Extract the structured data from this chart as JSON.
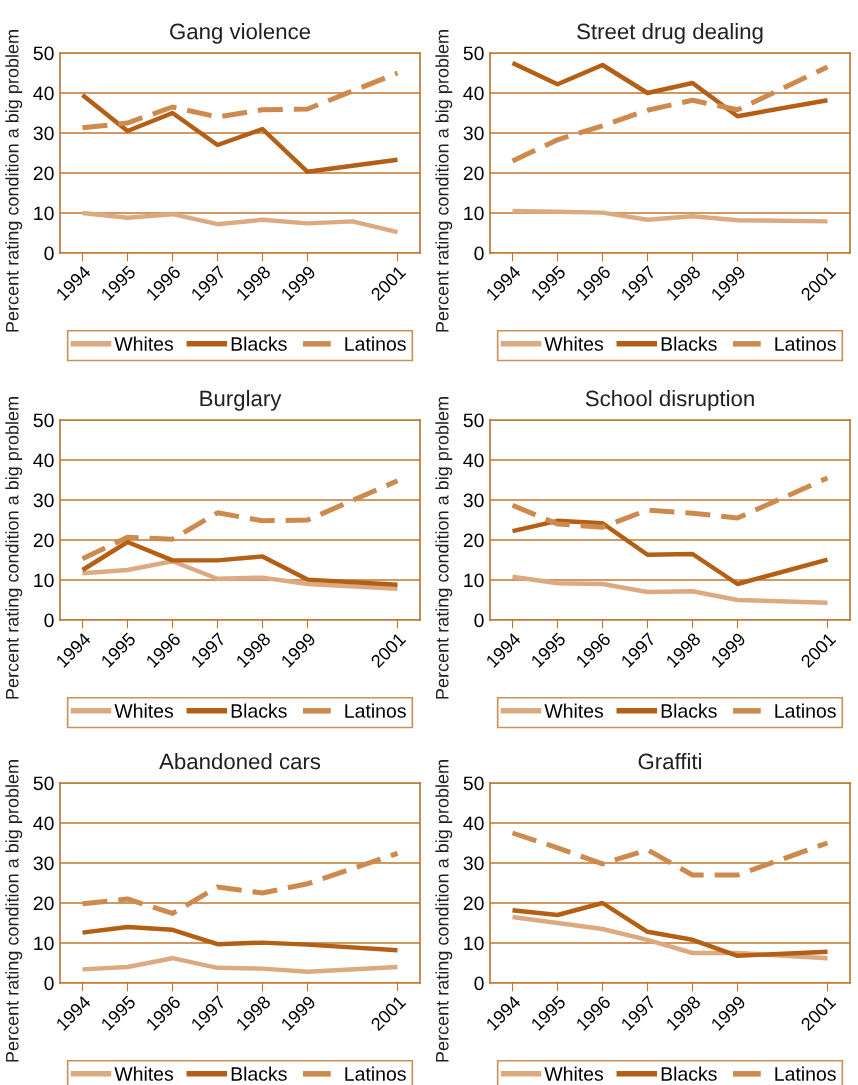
{
  "chart_data": [
    {
      "type": "line",
      "title": "Gang violence",
      "ylabel": "Percent rating condition a big problem",
      "xlim": [
        1993.5,
        2001.5
      ],
      "xticks": [
        1994,
        1995,
        1996,
        1997,
        1998,
        1999,
        2001
      ],
      "ylim": [
        0,
        50
      ],
      "yticks": [
        0,
        10,
        20,
        30,
        40,
        50
      ],
      "grid": "y",
      "legend": "bottom",
      "series": [
        {
          "name": "Whites",
          "color": "#dcaa80",
          "line_style": "solid",
          "x": [
            1994,
            1995,
            1996,
            1997,
            1998,
            1999,
            2000,
            2001
          ],
          "values": [
            10,
            8.8,
            9.7,
            7.2,
            8.3,
            7.4,
            7.9,
            5.2
          ]
        },
        {
          "name": "Blacks",
          "color": "#b35f15",
          "line_style": "solid",
          "x": [
            1994,
            1995,
            1996,
            1997,
            1998,
            1999,
            2001
          ],
          "values": [
            39.5,
            30.5,
            35,
            27,
            31,
            20.3,
            23.3
          ]
        },
        {
          "name": "Latinos",
          "color": "#cd8a4f",
          "line_style": "dashed",
          "x": [
            1994,
            1995,
            1996,
            1997,
            1998,
            1999,
            2001
          ],
          "values": [
            31.3,
            32.5,
            36.5,
            34,
            35.8,
            36,
            45
          ]
        }
      ]
    },
    {
      "type": "line",
      "title": "Street drug dealing",
      "ylabel": "Percent rating condition a big problem",
      "xlim": [
        1993.5,
        2001.5
      ],
      "xticks": [
        1994,
        1995,
        1996,
        1997,
        1998,
        1999,
        2001
      ],
      "ylim": [
        0,
        50
      ],
      "yticks": [
        0,
        10,
        20,
        30,
        40,
        50
      ],
      "grid": "y",
      "legend": "bottom",
      "series": [
        {
          "name": "Whites",
          "color": "#dcaa80",
          "line_style": "solid",
          "x": [
            1994,
            1995,
            1996,
            1997,
            1998,
            1999,
            2001
          ],
          "values": [
            10.5,
            10.3,
            10.1,
            8.3,
            9.2,
            8.2,
            7.9
          ]
        },
        {
          "name": "Blacks",
          "color": "#b35f15",
          "line_style": "solid",
          "x": [
            1994,
            1995,
            1996,
            1997,
            1998,
            1999,
            2001
          ],
          "values": [
            47.5,
            42.2,
            47,
            40,
            42.5,
            34.2,
            38.2
          ]
        },
        {
          "name": "Latinos",
          "color": "#cd8a4f",
          "line_style": "dashed",
          "x": [
            1994,
            1995,
            1996,
            1997,
            1998,
            1999,
            2001
          ],
          "values": [
            23,
            28.3,
            31.8,
            35.7,
            38.2,
            35.8,
            46.5
          ]
        }
      ]
    },
    {
      "type": "line",
      "title": "Burglary",
      "ylabel": "Percent rating condition a big problem",
      "xlim": [
        1993.5,
        2001.5
      ],
      "xticks": [
        1994,
        1995,
        1996,
        1997,
        1998,
        1999,
        2001
      ],
      "ylim": [
        0,
        50
      ],
      "yticks": [
        0,
        10,
        20,
        30,
        40,
        50
      ],
      "grid": "y",
      "legend": "bottom",
      "series": [
        {
          "name": "Whites",
          "color": "#dcaa80",
          "line_style": "solid",
          "x": [
            1994,
            1995,
            1996,
            1997,
            1998,
            1999,
            2001
          ],
          "values": [
            11.7,
            12.5,
            14.7,
            10.3,
            10.6,
            9,
            7.8
          ]
        },
        {
          "name": "Blacks",
          "color": "#b35f15",
          "line_style": "solid",
          "x": [
            1994,
            1995,
            1996,
            1997,
            1998,
            1999,
            2001
          ],
          "values": [
            12.5,
            19.5,
            14.9,
            14.9,
            15.9,
            10.1,
            8.8
          ]
        },
        {
          "name": "Latinos",
          "color": "#cd8a4f",
          "line_style": "dashed",
          "x": [
            1994,
            1995,
            1996,
            1997,
            1998,
            1999,
            2001
          ],
          "values": [
            15.3,
            20.7,
            20.2,
            26.8,
            24.8,
            25,
            34.8
          ]
        }
      ]
    },
    {
      "type": "line",
      "title": "School disruption",
      "ylabel": "Percent rating condition a big problem",
      "xlim": [
        1993.5,
        2001.5
      ],
      "xticks": [
        1994,
        1995,
        1996,
        1997,
        1998,
        1999,
        2001
      ],
      "ylim": [
        0,
        50
      ],
      "yticks": [
        0,
        10,
        20,
        30,
        40,
        50
      ],
      "grid": "y",
      "legend": "bottom",
      "series": [
        {
          "name": "Whites",
          "color": "#dcaa80",
          "line_style": "solid",
          "x": [
            1994,
            1995,
            1996,
            1997,
            1998,
            1999,
            2001
          ],
          "values": [
            10.8,
            9.2,
            9,
            7,
            7.2,
            5,
            4.3
          ]
        },
        {
          "name": "Blacks",
          "color": "#b35f15",
          "line_style": "solid",
          "x": [
            1994,
            1995,
            1996,
            1997,
            1998,
            1999,
            2001
          ],
          "values": [
            22.2,
            24.8,
            24.2,
            16.3,
            16.5,
            9,
            15.1
          ]
        },
        {
          "name": "Latinos",
          "color": "#cd8a4f",
          "line_style": "dashed",
          "x": [
            1994,
            1995,
            1996,
            1997,
            1998,
            1999,
            2001
          ],
          "values": [
            28.7,
            24,
            23.2,
            27.5,
            26.7,
            25.5,
            35.5
          ]
        }
      ]
    },
    {
      "type": "line",
      "title": "Abandoned cars",
      "ylabel": "Percent rating condition a big problem",
      "xlim": [
        1993.5,
        2001.5
      ],
      "xticks": [
        1994,
        1995,
        1996,
        1997,
        1998,
        1999,
        2001
      ],
      "ylim": [
        0,
        50
      ],
      "yticks": [
        0,
        10,
        20,
        30,
        40,
        50
      ],
      "grid": "y",
      "legend": "bottom",
      "series": [
        {
          "name": "Whites",
          "color": "#dcaa80",
          "line_style": "solid",
          "x": [
            1994,
            1995,
            1996,
            1997,
            1998,
            1999,
            2001
          ],
          "values": [
            3.4,
            4,
            6.2,
            3.8,
            3.6,
            2.8,
            4
          ]
        },
        {
          "name": "Blacks",
          "color": "#b35f15",
          "line_style": "solid",
          "x": [
            1994,
            1995,
            1996,
            1997,
            1998,
            1999,
            2001
          ],
          "values": [
            12.6,
            14,
            13.3,
            9.7,
            10.1,
            9.6,
            8.2
          ]
        },
        {
          "name": "Latinos",
          "color": "#cd8a4f",
          "line_style": "dashed",
          "x": [
            1994,
            1995,
            1996,
            1997,
            1998,
            1999,
            2001
          ],
          "values": [
            19.8,
            21,
            17.4,
            24,
            22.5,
            24.8,
            32.4
          ]
        }
      ]
    },
    {
      "type": "line",
      "title": "Graffiti",
      "ylabel": "Percent rating condition a big problem",
      "xlim": [
        1993.5,
        2001.5
      ],
      "xticks": [
        1994,
        1995,
        1996,
        1997,
        1998,
        1999,
        2001
      ],
      "ylim": [
        0,
        50
      ],
      "yticks": [
        0,
        10,
        20,
        30,
        40,
        50
      ],
      "grid": "y",
      "legend": "bottom",
      "series": [
        {
          "name": "Whites",
          "color": "#dcaa80",
          "line_style": "solid",
          "x": [
            1994,
            1995,
            1996,
            1997,
            1998,
            1999,
            2001
          ],
          "values": [
            16.5,
            15,
            13.5,
            10.8,
            7.5,
            7.5,
            6.2
          ]
        },
        {
          "name": "Blacks",
          "color": "#b35f15",
          "line_style": "solid",
          "x": [
            1994,
            1995,
            1996,
            1997,
            1998,
            1999,
            2001
          ],
          "values": [
            18.2,
            17,
            20,
            12.8,
            10.8,
            6.8,
            7.8
          ]
        },
        {
          "name": "Latinos",
          "color": "#cd8a4f",
          "line_style": "dashed",
          "x": [
            1994,
            1995,
            1996,
            1997,
            1998,
            1999,
            2001
          ],
          "values": [
            37.5,
            33.8,
            29.8,
            33.3,
            27,
            27,
            35
          ]
        }
      ]
    }
  ]
}
